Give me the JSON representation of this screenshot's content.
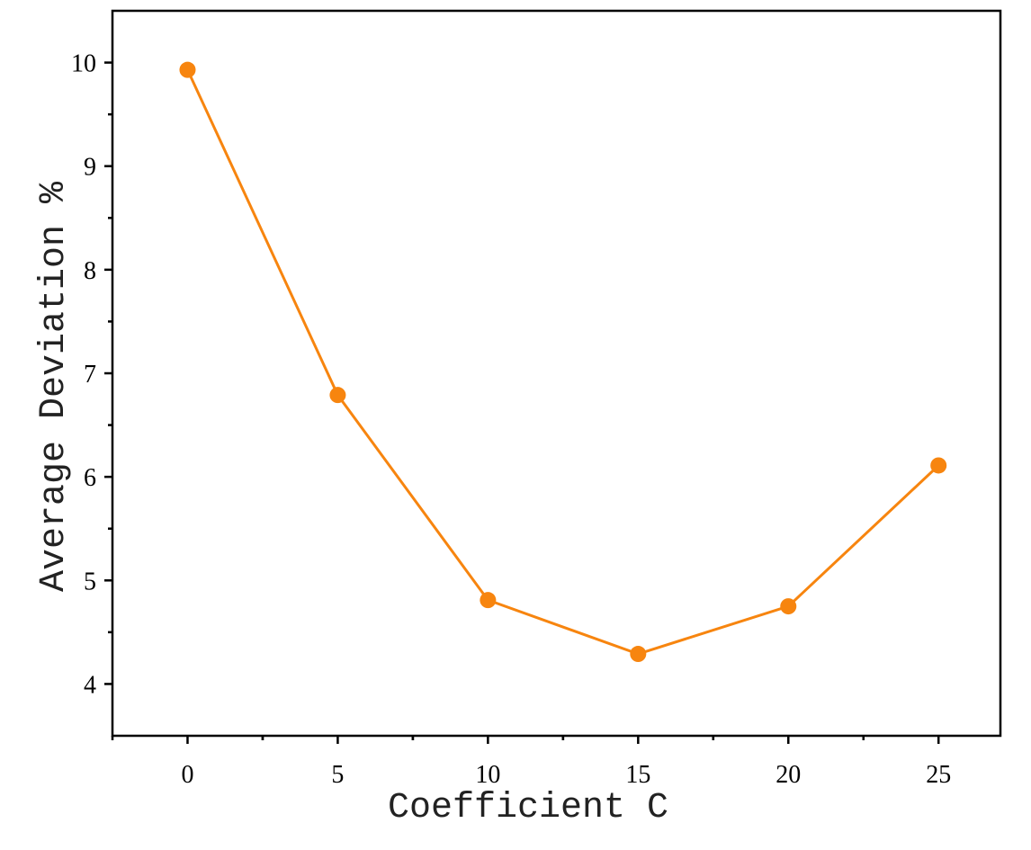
{
  "chart_data": {
    "type": "line",
    "x_label": "Coefficient C",
    "y_label": "Average Deviation %",
    "x": [
      0,
      5,
      10,
      15,
      20,
      25
    ],
    "series": [
      {
        "name": "Average Deviation",
        "color": "#f7850f",
        "values": [
          9.93,
          6.79,
          4.81,
          4.29,
          4.75,
          6.11
        ]
      }
    ],
    "xlim": [
      -2.5,
      27.06
    ],
    "ylim": [
      3.5,
      10.5
    ],
    "xticks": [
      0,
      5,
      10,
      15,
      20,
      25
    ],
    "yticks": [
      4,
      5,
      6,
      7,
      8,
      9,
      10
    ],
    "grid": false
  }
}
